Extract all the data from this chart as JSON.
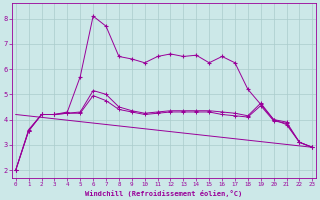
{
  "xlabel": "Windchill (Refroidissement éolien,°C)",
  "bg_color": "#cce8e8",
  "grid_color": "#aacccc",
  "line_color": "#990099",
  "x_ticks": [
    0,
    1,
    2,
    3,
    4,
    5,
    6,
    7,
    8,
    9,
    10,
    11,
    12,
    13,
    14,
    15,
    16,
    17,
    18,
    19,
    20,
    21,
    22,
    23
  ],
  "y_ticks": [
    2,
    3,
    4,
    5,
    6,
    7,
    8
  ],
  "ylim": [
    1.7,
    8.6
  ],
  "xlim": [
    -0.3,
    23.3
  ],
  "line1_x": [
    0,
    1,
    2,
    3,
    4,
    5,
    6,
    7,
    8,
    9,
    10,
    11,
    12,
    13,
    14,
    15,
    16,
    17,
    18,
    19,
    20,
    21,
    22,
    23
  ],
  "line1_y": [
    2.0,
    3.6,
    4.2,
    4.2,
    4.3,
    5.7,
    8.1,
    7.7,
    6.5,
    6.4,
    6.25,
    6.5,
    6.6,
    6.5,
    6.55,
    6.25,
    6.5,
    6.25,
    5.2,
    4.6,
    4.0,
    3.8,
    3.1,
    2.9
  ],
  "line2_x": [
    0,
    1,
    2,
    3,
    4,
    5,
    6,
    7,
    8,
    9,
    10,
    11,
    12,
    13,
    14,
    15,
    16,
    17,
    18,
    19,
    20,
    21,
    22,
    23
  ],
  "line2_y": [
    2.0,
    3.55,
    4.2,
    4.2,
    4.25,
    4.3,
    5.15,
    5.0,
    4.5,
    4.35,
    4.25,
    4.3,
    4.35,
    4.35,
    4.35,
    4.35,
    4.3,
    4.25,
    4.15,
    4.65,
    4.0,
    3.9,
    3.1,
    2.9
  ],
  "line3_x": [
    0,
    1,
    2,
    3,
    4,
    5,
    6,
    7,
    8,
    9,
    10,
    11,
    12,
    13,
    14,
    15,
    16,
    17,
    18,
    19,
    20,
    21,
    22,
    23
  ],
  "line3_y": [
    2.0,
    3.55,
    4.2,
    4.2,
    4.25,
    4.25,
    4.95,
    4.75,
    4.4,
    4.3,
    4.2,
    4.25,
    4.3,
    4.3,
    4.3,
    4.3,
    4.2,
    4.15,
    4.1,
    4.55,
    3.95,
    3.85,
    3.1,
    2.9
  ],
  "line4_x": [
    0,
    23
  ],
  "line4_y": [
    4.2,
    2.9
  ]
}
